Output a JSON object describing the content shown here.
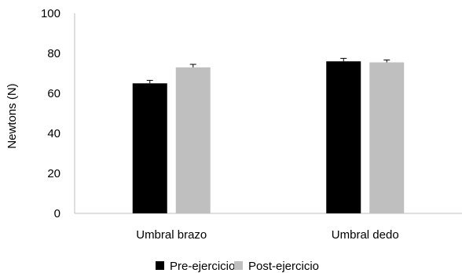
{
  "chart_data": {
    "type": "bar",
    "title": "",
    "xlabel": "",
    "ylabel": "Newtons (N)",
    "ylim": [
      0,
      100
    ],
    "yticks": [
      0,
      20,
      40,
      60,
      80,
      100
    ],
    "grid": false,
    "legend_position": "bottom",
    "categories": [
      "Umbral brazo",
      "Umbral dedo"
    ],
    "series": [
      {
        "name": "Pre-ejercicio",
        "color": "#000000",
        "values": [
          65,
          76
        ],
        "errors": [
          1.5,
          1.5
        ]
      },
      {
        "name": "Post-ejercicio",
        "color": "#bfbfbf",
        "values": [
          73,
          75.5
        ],
        "errors": [
          1.5,
          1.2
        ]
      }
    ]
  }
}
